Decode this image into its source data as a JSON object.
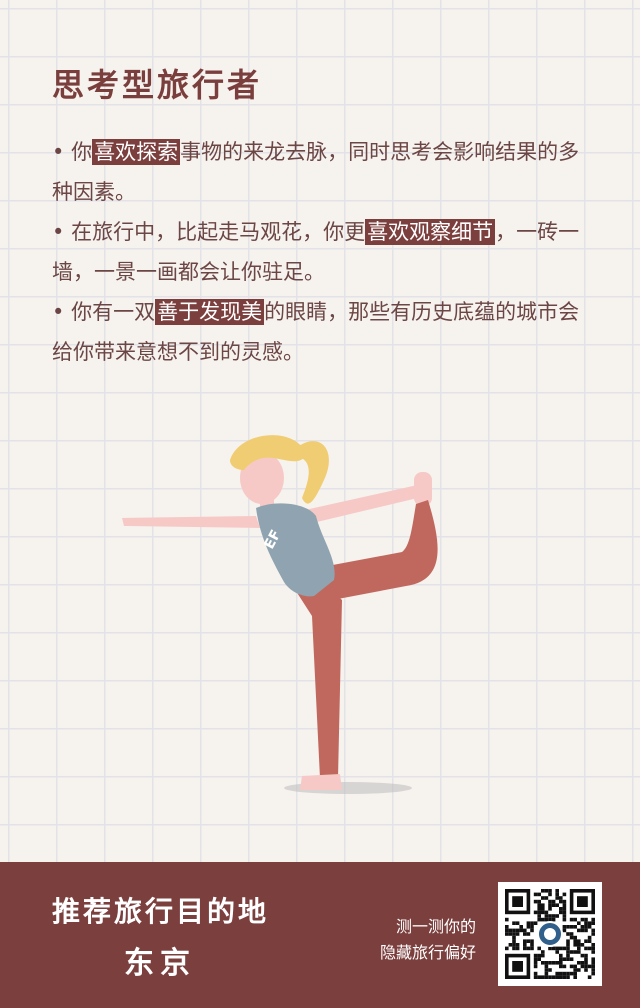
{
  "title": "思考型旅行者",
  "bullets": [
    {
      "marker": "•",
      "pre": "你",
      "highlight": "喜欢探索",
      "post": "事物的来龙去脉，同时思考会影响结果的多种因素。"
    },
    {
      "marker": "•",
      "pre": "在旅行中，比起走马观花，你更",
      "highlight": "喜欢观察细节",
      "post": "，一砖一墙，一景一画都会让你驻足。"
    },
    {
      "marker": "•",
      "pre": "你有一双",
      "highlight": "善于发现美",
      "post": "的眼睛，那些有历史底蕴的城市会给你带来意想不到的灵感。"
    }
  ],
  "illustration": {
    "shirt_logo": "EF"
  },
  "footer": {
    "line1": "推荐旅行目的地",
    "line2": "东京",
    "cta_line1": "测一测你的",
    "cta_line2": "隐藏旅行偏好"
  },
  "colors": {
    "accent": "#7b3f3e",
    "background": "#f6f2ee",
    "grid": "#e3e2e8",
    "text": "#6b4644",
    "hair": "#f0cd72",
    "skin": "#f6c9c6",
    "shirt": "#8fa4b0",
    "pants": "#c1685e"
  },
  "icons": {
    "qr": "qr-code-icon"
  }
}
